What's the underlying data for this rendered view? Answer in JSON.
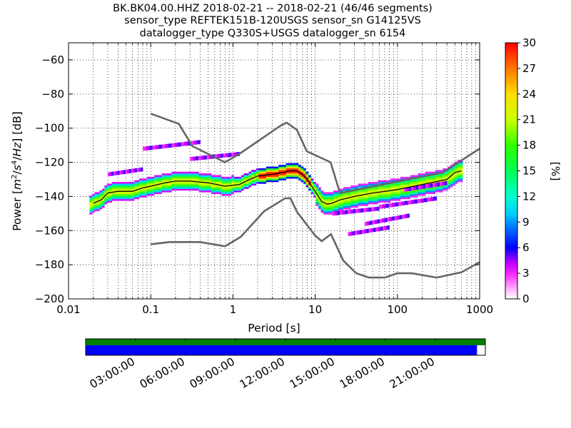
{
  "title_lines": [
    "BK.BK04.00.HHZ   2018-02-21 -- 2018-02-21  (46/46 segments)",
    "sensor_type REFTEK151B-120USGS sensor_sn G14125VS",
    "datalogger_type Q330S+USGS datalogger_sn 6154"
  ],
  "chart_data": {
    "type": "heatmap",
    "xlabel": "Period [s]",
    "ylabel": "Power [m^2/s^4/Hz] [dB]",
    "x_scale": "log",
    "xlim": [
      0.01,
      1000
    ],
    "ylim": [
      -200,
      -50
    ],
    "x_ticks": [
      {
        "value": 0.01,
        "label": "0.01"
      },
      {
        "value": 0.1,
        "label": "0.1"
      },
      {
        "value": 1,
        "label": "1"
      },
      {
        "value": 10,
        "label": "10"
      },
      {
        "value": 100,
        "label": "100"
      },
      {
        "value": 1000,
        "label": "1000"
      }
    ],
    "y_ticks": [
      {
        "value": -60,
        "label": "−60"
      },
      {
        "value": -80,
        "label": "−80"
      },
      {
        "value": -100,
        "label": "−100"
      },
      {
        "value": -120,
        "label": "−120"
      },
      {
        "value": -140,
        "label": "−140"
      },
      {
        "value": -160,
        "label": "−160"
      },
      {
        "value": -180,
        "label": "−180"
      },
      {
        "value": -200,
        "label": "−200"
      }
    ],
    "colorbar": {
      "label": "[%]",
      "range": [
        0,
        30
      ],
      "ticks": [
        {
          "value": 0,
          "label": "0"
        },
        {
          "value": 3,
          "label": "3"
        },
        {
          "value": 6,
          "label": "6"
        },
        {
          "value": 9,
          "label": "9"
        },
        {
          "value": 12,
          "label": "12"
        },
        {
          "value": 15,
          "label": "15"
        },
        {
          "value": 18,
          "label": "18"
        },
        {
          "value": 21,
          "label": "21"
        },
        {
          "value": 24,
          "label": "24"
        },
        {
          "value": 27,
          "label": "27"
        },
        {
          "value": 30,
          "label": "30"
        }
      ]
    },
    "noise_model_high": [
      [
        0.1,
        -91.5
      ],
      [
        0.22,
        -97.5
      ],
      [
        0.32,
        -110.5
      ],
      [
        0.8,
        -120
      ],
      [
        1.2,
        -115
      ],
      [
        3.8,
        -98.5
      ],
      [
        4.5,
        -96.8
      ],
      [
        6.0,
        -101
      ],
      [
        7.9,
        -113.5
      ],
      [
        15.4,
        -120
      ],
      [
        20,
        -138
      ],
      [
        354.8,
        -126
      ],
      [
        1000,
        -112
      ]
    ],
    "noise_model_low": [
      [
        0.1,
        -168
      ],
      [
        0.17,
        -166.7
      ],
      [
        0.4,
        -166.7
      ],
      [
        0.8,
        -169.2
      ],
      [
        1.24,
        -163.7
      ],
      [
        2.4,
        -148.6
      ],
      [
        4.3,
        -141.1
      ],
      [
        5.0,
        -141.1
      ],
      [
        6.0,
        -149
      ],
      [
        10.0,
        -163
      ],
      [
        12.0,
        -166.2
      ],
      [
        15.6,
        -162.1
      ],
      [
        21.9,
        -177.5
      ],
      [
        31.6,
        -185
      ],
      [
        45,
        -187.5
      ],
      [
        70,
        -187.5
      ],
      [
        100,
        -185
      ],
      [
        150,
        -185
      ],
      [
        300,
        -187.5
      ],
      [
        600,
        -184.4
      ],
      [
        1000,
        -178.5
      ]
    ],
    "mean_psd": [
      [
        0.02,
        -144
      ],
      [
        0.025,
        -142
      ],
      [
        0.03,
        -138
      ],
      [
        0.04,
        -137
      ],
      [
        0.06,
        -137
      ],
      [
        0.08,
        -135
      ],
      [
        0.1,
        -134
      ],
      [
        0.15,
        -132
      ],
      [
        0.2,
        -131
      ],
      [
        0.3,
        -131
      ],
      [
        0.5,
        -132
      ],
      [
        0.8,
        -134
      ],
      [
        1.2,
        -133
      ],
      [
        1.6,
        -130
      ],
      [
        2,
        -128
      ],
      [
        3,
        -127
      ],
      [
        4,
        -126
      ],
      [
        5,
        -125
      ],
      [
        6,
        -125
      ],
      [
        7,
        -127
      ],
      [
        8,
        -130
      ],
      [
        10,
        -137
      ],
      [
        12,
        -143
      ],
      [
        14,
        -144.5
      ],
      [
        16,
        -144
      ],
      [
        20,
        -142
      ],
      [
        30,
        -140
      ],
      [
        50,
        -138
      ],
      [
        100,
        -136
      ],
      [
        200,
        -133
      ],
      [
        400,
        -130
      ],
      [
        500,
        -126
      ],
      [
        600,
        -125
      ]
    ],
    "time_axis": {
      "labels": [
        "03:00:00",
        "06:00:00",
        "09:00:00",
        "12:00:00",
        "15:00:00",
        "18:00:00",
        "21:00:00"
      ],
      "label_hours": [
        3,
        6,
        9,
        12,
        15,
        18,
        21
      ],
      "range_hours": [
        0,
        24
      ],
      "data_coverage_color": "#008000",
      "psd_coverage_color": "#0000ff",
      "psd_coverage_end_hours": 23.5
    }
  },
  "colors": {
    "noise_model": "#666666",
    "mean_line": "#000000",
    "grid": "#000000"
  }
}
